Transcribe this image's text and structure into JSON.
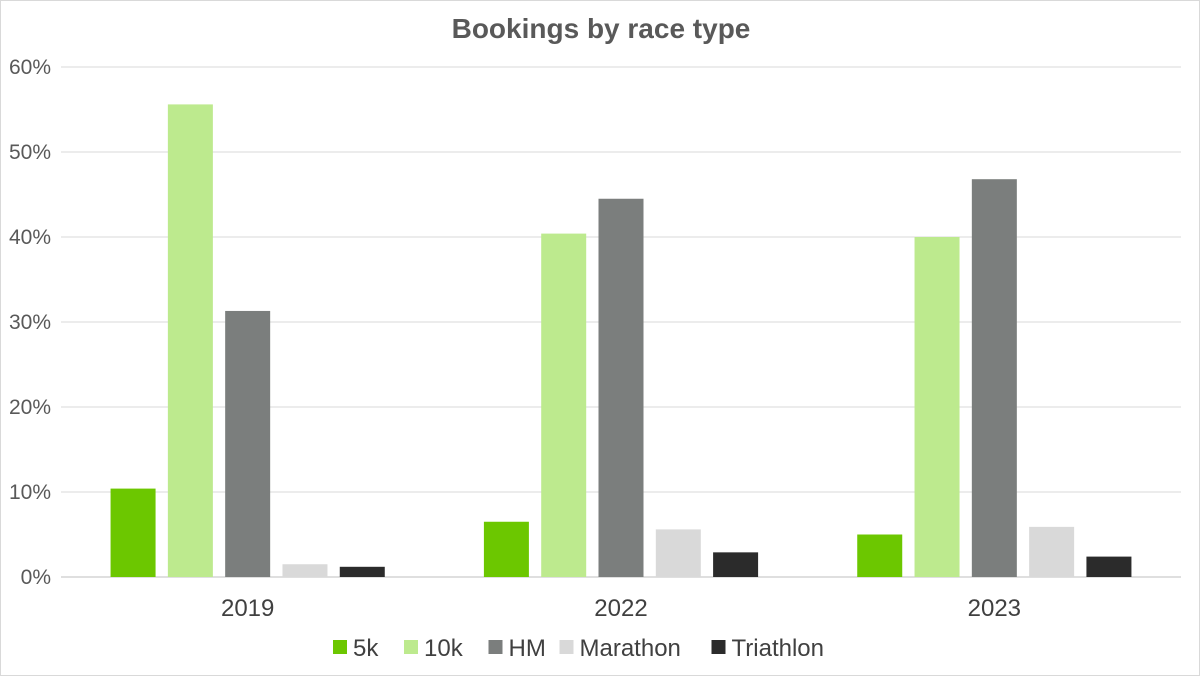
{
  "chart_data": {
    "type": "bar",
    "title": "Bookings by race type",
    "categories": [
      "2019",
      "2022",
      "2023"
    ],
    "series": [
      {
        "name": "5k",
        "color": "#6cc700",
        "values": [
          10.4,
          6.5,
          5.0
        ]
      },
      {
        "name": "10k",
        "color": "#bdea8e",
        "values": [
          55.6,
          40.4,
          40.0
        ]
      },
      {
        "name": "HM",
        "color": "#7b7e7d",
        "values": [
          31.3,
          44.5,
          46.8
        ]
      },
      {
        "name": "Marathon",
        "color": "#d9d9d9",
        "values": [
          1.5,
          5.6,
          5.9
        ]
      },
      {
        "name": "Triathlon",
        "color": "#2b2b2b",
        "values": [
          1.2,
          2.9,
          2.4
        ]
      }
    ],
    "ylim": [
      0,
      60
    ],
    "yticks": [
      "0%",
      "10%",
      "20%",
      "30%",
      "40%",
      "50%",
      "60%"
    ],
    "grid": true,
    "legend_position": "bottom"
  }
}
